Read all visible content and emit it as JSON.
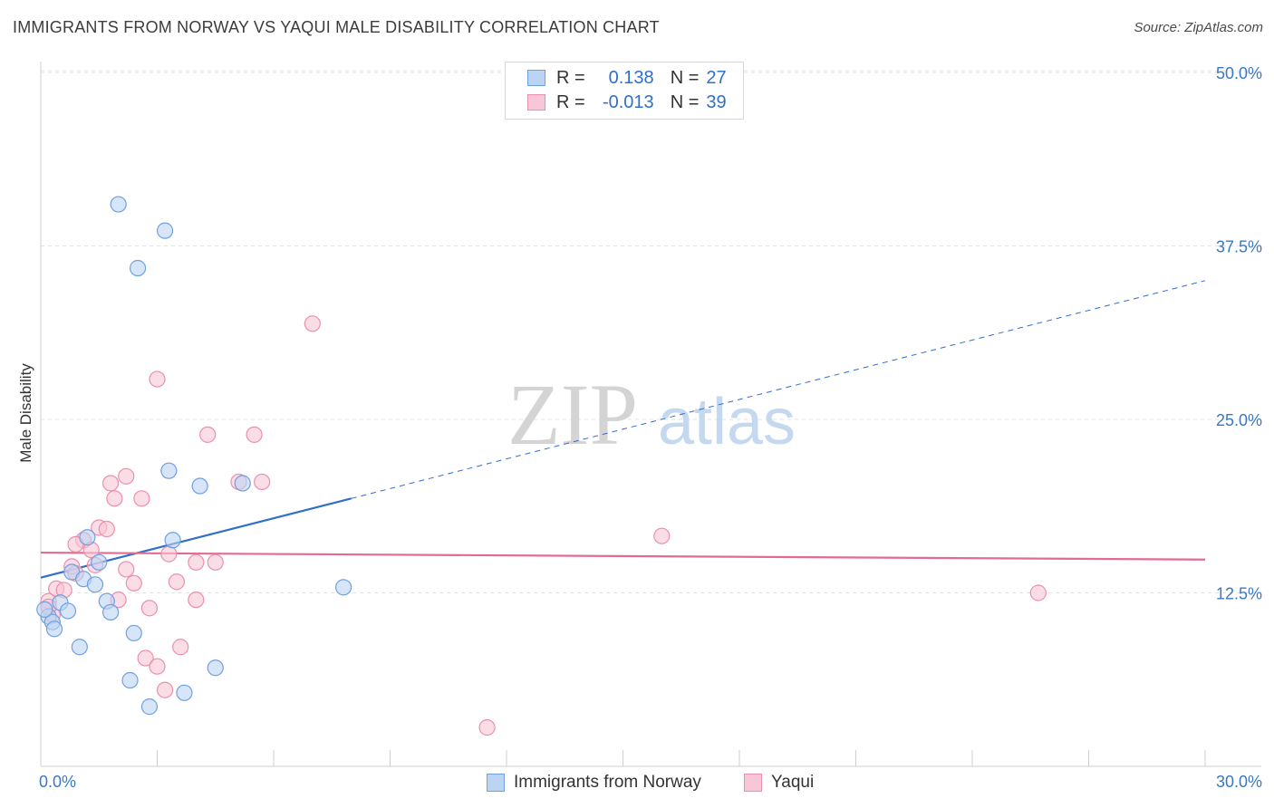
{
  "chart_data": {
    "type": "scatter",
    "title": "IMMIGRANTS FROM NORWAY VS YAQUI MALE DISABILITY CORRELATION CHART",
    "source": "Source: ZipAtlas.com",
    "watermark": {
      "zip": "ZIP",
      "atlas": "atlas"
    },
    "xlabel": "",
    "ylabel": "Male Disability",
    "xlim": [
      0,
      30
    ],
    "ylim": [
      0,
      50
    ],
    "x_tick_labels": [
      {
        "value": 0,
        "label": "0.0%"
      },
      {
        "value": 30,
        "label": "30.0%"
      }
    ],
    "y_tick_labels": [
      {
        "value": 12.5,
        "label": "12.5%"
      },
      {
        "value": 25.0,
        "label": "25.0%"
      },
      {
        "value": 37.5,
        "label": "37.5%"
      },
      {
        "value": 50.0,
        "label": "50.0%"
      }
    ],
    "legend": {
      "r_label": "R =",
      "n_label": "N =",
      "entries": [
        {
          "r": "0.138",
          "n": "27"
        },
        {
          "r": "-0.013",
          "n": "39"
        }
      ]
    },
    "series": [
      {
        "name": "Immigrants from Norway",
        "color": "#6fa0e0",
        "fill": "#bcd4f4",
        "trend": {
          "x0": 0,
          "y0": 13.6,
          "x1": 8.0,
          "y1": 19.3,
          "dash_to_x": 30,
          "dash_to_y": 35.0,
          "color": "#2f6fca"
        },
        "points": [
          [
            2.0,
            40.5
          ],
          [
            3.2,
            38.6
          ],
          [
            2.5,
            35.9
          ],
          [
            3.3,
            21.3
          ],
          [
            4.1,
            20.2
          ],
          [
            5.2,
            20.4
          ],
          [
            1.2,
            16.5
          ],
          [
            3.4,
            16.3
          ],
          [
            1.5,
            14.7
          ],
          [
            0.8,
            14.0
          ],
          [
            1.1,
            13.5
          ],
          [
            1.4,
            13.1
          ],
          [
            7.8,
            12.9
          ],
          [
            0.5,
            11.8
          ],
          [
            1.7,
            11.9
          ],
          [
            0.7,
            11.2
          ],
          [
            1.8,
            11.1
          ],
          [
            0.2,
            10.8
          ],
          [
            0.3,
            10.4
          ],
          [
            0.35,
            9.9
          ],
          [
            2.4,
            9.6
          ],
          [
            1.0,
            8.6
          ],
          [
            4.5,
            7.1
          ],
          [
            2.3,
            6.2
          ],
          [
            3.7,
            5.3
          ],
          [
            2.8,
            4.3
          ],
          [
            0.1,
            11.3
          ]
        ]
      },
      {
        "name": "Yaqui",
        "color": "#eb8fad",
        "fill": "#f8c6d6",
        "trend": {
          "x0": 0,
          "y0": 15.4,
          "x1": 30,
          "y1": 14.9,
          "color": "#e26c91"
        },
        "points": [
          [
            7.0,
            31.9
          ],
          [
            3.0,
            27.9
          ],
          [
            4.3,
            23.9
          ],
          [
            5.5,
            23.9
          ],
          [
            2.2,
            20.9
          ],
          [
            1.8,
            20.4
          ],
          [
            5.1,
            20.5
          ],
          [
            5.7,
            20.5
          ],
          [
            1.9,
            19.3
          ],
          [
            2.6,
            19.3
          ],
          [
            1.5,
            17.2
          ],
          [
            1.7,
            17.1
          ],
          [
            16.0,
            16.6
          ],
          [
            1.1,
            16.3
          ],
          [
            0.9,
            16.0
          ],
          [
            1.3,
            15.6
          ],
          [
            3.3,
            15.3
          ],
          [
            1.4,
            14.5
          ],
          [
            4.0,
            14.7
          ],
          [
            4.5,
            14.7
          ],
          [
            2.2,
            14.2
          ],
          [
            0.8,
            14.4
          ],
          [
            0.9,
            13.9
          ],
          [
            3.5,
            13.3
          ],
          [
            2.4,
            13.2
          ],
          [
            0.4,
            12.8
          ],
          [
            0.6,
            12.7
          ],
          [
            25.7,
            12.5
          ],
          [
            2.0,
            12.0
          ],
          [
            4.0,
            12.0
          ],
          [
            0.2,
            11.9
          ],
          [
            2.8,
            11.4
          ],
          [
            0.3,
            10.9
          ],
          [
            3.6,
            8.6
          ],
          [
            2.7,
            7.8
          ],
          [
            3.0,
            7.2
          ],
          [
            3.2,
            5.5
          ],
          [
            11.5,
            2.8
          ],
          [
            0.2,
            11.5
          ]
        ]
      }
    ]
  },
  "bottom_legend": [
    {
      "label": "Immigrants from Norway"
    },
    {
      "label": "Yaqui"
    }
  ]
}
